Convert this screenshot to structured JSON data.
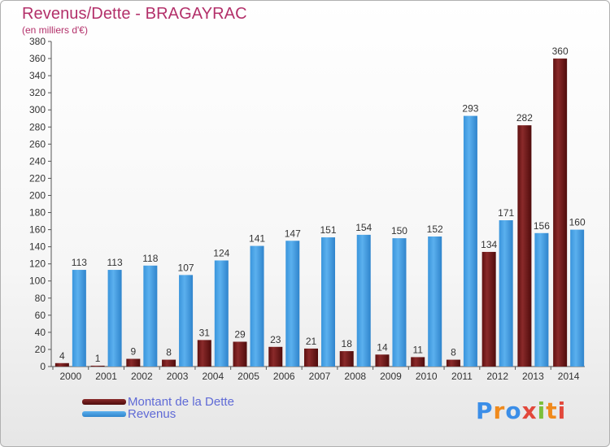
{
  "title": "Revenus/Dette - BRAGAYRAC",
  "subtitle": "(en milliers d'€)",
  "colors": {
    "dette": "#7a1c1c",
    "revenus": "#3f9fe3",
    "title": "#b3306a"
  },
  "chart_data": {
    "type": "bar",
    "title": "Revenus/Dette - BRAGAYRAC",
    "subtitle": "(en milliers d'€)",
    "categories": [
      "2000",
      "2001",
      "2002",
      "2003",
      "2004",
      "2005",
      "2006",
      "2007",
      "2008",
      "2009",
      "2010",
      "2011",
      "2012",
      "2013",
      "2014"
    ],
    "series": [
      {
        "name": "Montant de la Dette",
        "values": [
          4,
          1,
          9,
          8,
          31,
          29,
          23,
          21,
          18,
          14,
          11,
          8,
          134,
          282,
          360
        ]
      },
      {
        "name": "Revenus",
        "values": [
          113,
          113,
          118,
          107,
          124,
          141,
          147,
          151,
          154,
          150,
          152,
          293,
          171,
          156,
          160
        ]
      }
    ],
    "ylim": [
      0,
      380
    ],
    "yticks": [
      0,
      20,
      40,
      60,
      80,
      100,
      120,
      140,
      160,
      180,
      200,
      220,
      240,
      260,
      280,
      300,
      320,
      340,
      360,
      380
    ],
    "grid": false,
    "legend": "bottom-left"
  },
  "logo_text": "Proxiti"
}
